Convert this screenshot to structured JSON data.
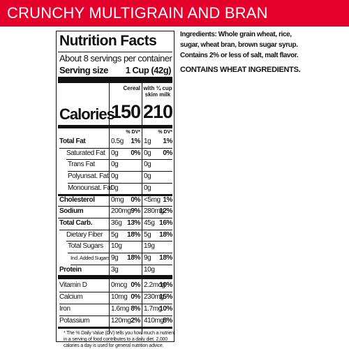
{
  "banner": "CRUNCHY MULTIGRAIN AND BRAN",
  "label": {
    "title": "Nutrition Facts",
    "servings": "About 8 servings per container",
    "serving_size_label": "Serving size",
    "serving_size_value": "1 Cup (42g)",
    "columns": [
      "Cereal",
      "with ¾ cup skim milk"
    ],
    "calories_label": "Calories",
    "calories": [
      "150",
      "210"
    ],
    "dv_header": [
      "% DV*",
      "% DV*"
    ],
    "rows": [
      {
        "name": "Total Fat",
        "amount1": "0.5g",
        "dv1": "1%",
        "amount2": "1g",
        "dv2": "1%"
      },
      {
        "name": "Saturated Fat",
        "amount1": "0g",
        "dv1": "0%",
        "amount2": "0g",
        "dv2": "0%"
      },
      {
        "name": "Trans Fat",
        "amount1": "0g",
        "amount2": "0g"
      },
      {
        "name": "Polyunsat. Fat",
        "amount1": "0g",
        "amount2": "0g"
      },
      {
        "name": "Monounsat. Fat",
        "amount1": "0g",
        "amount2": "0g"
      },
      {
        "name": "Cholesterol",
        "amount1": "0mg",
        "dv1": "0%",
        "amount2": "<5mg",
        "dv2": "1%"
      },
      {
        "name": "Sodium",
        "amount1": "200mg",
        "dv1": "9%",
        "amount2": "280mg",
        "dv2": "12%"
      },
      {
        "name": "Total Carb.",
        "amount1": "36g",
        "dv1": "13%",
        "amount2": "45g",
        "dv2": "16%"
      },
      {
        "name": "Dietary Fiber",
        "amount1": "5g",
        "dv1": "18%",
        "amount2": "5g",
        "dv2": "18%"
      },
      {
        "name": "Total Sugars",
        "amount1": "10g",
        "amount2": "19g"
      },
      {
        "name": "Incl. Added Sugars",
        "amount1": "9g",
        "dv1": "18%",
        "amount2": "9g",
        "dv2": "18%"
      },
      {
        "name": "Protein",
        "amount1": "3g",
        "amount2": "10g"
      },
      {
        "name": "Vitamin D",
        "amount1": "0mcg",
        "dv1": "0%",
        "amount2": "2.2mcg",
        "dv2": "10%"
      },
      {
        "name": "Calcium",
        "amount1": "10mg",
        "dv1": "0%",
        "amount2": "230mg",
        "dv2": "15%"
      },
      {
        "name": "Iron",
        "amount1": "1.6mg",
        "dv1": "8%",
        "amount2": "1.7mg",
        "dv2": "10%"
      },
      {
        "name": "Potassium",
        "amount1": "120mg",
        "dv1": "2%",
        "amount2": "410mg",
        "dv2": "8%"
      }
    ],
    "footnote": [
      "* The % Daily Value (DV) tells you how much a nutrient",
      "in a serving of food contributes to a daily diet. 2,000",
      "calories a day is used for general nutrition advice."
    ]
  },
  "ingredients": [
    "Ingredients: Whole grain wheat, rice,",
    "sugar, wheat bran, brown sugar syrup.",
    "Contains 2% or less of salt, malt flavor."
  ],
  "allergen": "CONTAINS WHEAT INGREDIENTS."
}
